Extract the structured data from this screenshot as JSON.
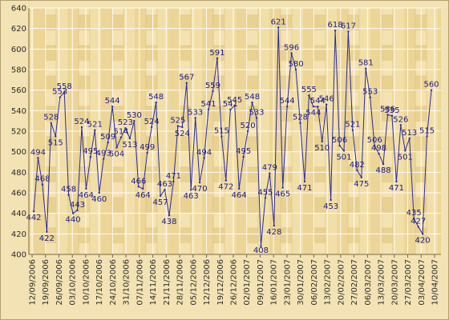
{
  "chart_data": {
    "type": "line",
    "title": "",
    "xlabel": "",
    "ylabel": "",
    "ylim": [
      400,
      640
    ],
    "yticks": [
      400,
      420,
      440,
      460,
      480,
      500,
      520,
      540,
      560,
      580,
      600,
      620,
      640
    ],
    "grid": true,
    "legend": "none",
    "colors": {
      "line": "#2b2b9a",
      "background": "#f0dca0",
      "grid": "#ffffff",
      "text": "#1a1a8a"
    },
    "x_tick_labels": [
      "12/09/2006",
      "19/09/2006",
      "26/09/2006",
      "03/10/2006",
      "10/10/2006",
      "17/10/2006",
      "24/10/2006",
      "31/10/2006",
      "07/11/2006",
      "14/11/2006",
      "21/11/2006",
      "28/11/2006",
      "05/12/2006",
      "12/12/2006",
      "19/12/2006",
      "26/12/2006",
      "02/01/2007",
      "09/01/2007",
      "16/01/2007",
      "23/01/2007",
      "30/01/2007",
      "06/02/2007",
      "13/02/2007",
      "20/02/2007",
      "27/02/2007",
      "06/03/2007",
      "13/03/2007",
      "20/03/2007",
      "27/03/2007",
      "03/04/2007",
      "10/04/2007"
    ],
    "values": [
      442,
      494,
      468,
      422,
      528,
      515,
      553,
      558,
      458,
      440,
      443,
      524,
      464,
      495,
      521,
      460,
      493,
      509,
      544,
      504,
      514,
      523,
      513,
      530,
      466,
      464,
      499,
      524,
      548,
      457,
      463,
      438,
      471,
      525,
      524,
      567,
      463,
      533,
      470,
      494,
      541,
      559,
      591,
      515,
      472,
      541,
      545,
      464,
      495,
      520,
      548,
      533,
      408,
      455,
      479,
      428,
      621,
      465,
      544,
      596,
      580,
      528,
      471,
      555,
      544,
      544,
      510,
      546,
      453,
      618,
      506,
      501,
      617,
      521,
      482,
      475,
      581,
      553,
      506,
      498,
      488,
      536,
      535,
      471,
      526,
      501,
      513,
      435,
      427,
      420,
      515,
      560
    ]
  }
}
